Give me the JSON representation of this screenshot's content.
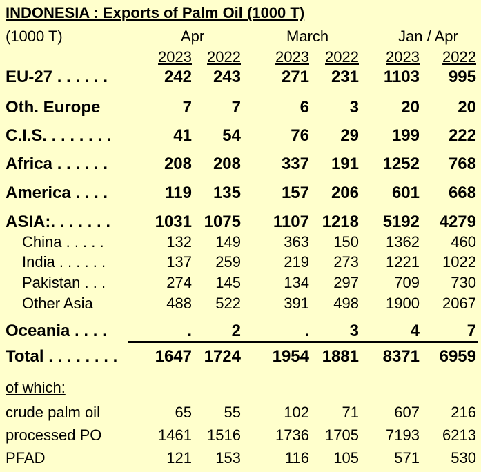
{
  "title": "INDONESIA :  Exports of Palm Oil (1000 T)",
  "unit_label": "(1000 T)",
  "period_groups": [
    "Apr",
    "March",
    "Jan / Apr"
  ],
  "years": [
    "2023",
    "2022",
    "2023",
    "2022",
    "2023",
    "2022"
  ],
  "rows": [
    {
      "label": "EU-27 . . . . . .",
      "values": [
        "242",
        "243",
        "271",
        "231",
        "1103",
        "995"
      ]
    },
    {
      "label": "Oth. Europe",
      "values": [
        "7",
        "7",
        "6",
        "3",
        "20",
        "20"
      ]
    },
    {
      "label": "C.I.S. . . . . . . .",
      "values": [
        "41",
        "54",
        "76",
        "29",
        "199",
        "222"
      ]
    },
    {
      "label": "Africa . . . . . .",
      "values": [
        "208",
        "208",
        "337",
        "191",
        "1252",
        "768"
      ]
    },
    {
      "label": "America . . . .",
      "values": [
        "119",
        "135",
        "157",
        "206",
        "601",
        "668"
      ]
    },
    {
      "label": "ASIA:. . . . . . .",
      "values": [
        "1031",
        "1075",
        "1107",
        "1218",
        "5192",
        "4279"
      ]
    }
  ],
  "asia_rows": [
    {
      "label": "China . . . . .",
      "values": [
        "132",
        "149",
        "363",
        "150",
        "1362",
        "460"
      ]
    },
    {
      "label": "India . . . . . .",
      "values": [
        "137",
        "259",
        "219",
        "273",
        "1221",
        "1022"
      ]
    },
    {
      "label": "Pakistan . . .",
      "values": [
        "274",
        "145",
        "134",
        "297",
        "709",
        "730"
      ]
    },
    {
      "label": "Other Asia",
      "values": [
        "488",
        "522",
        "391",
        "498",
        "1900",
        "2067"
      ]
    }
  ],
  "oceania": {
    "label": "Oceania . . . .",
    "values": [
      ".",
      "2",
      ".",
      "3",
      "4",
      "7"
    ]
  },
  "total": {
    "label": "Total . . . . . . . .",
    "values": [
      "1647",
      "1724",
      "1954",
      "1881",
      "8371",
      "6959"
    ]
  },
  "of_which_label": "of which:",
  "of_which_rows": [
    {
      "label": "crude palm oil",
      "values": [
        "65",
        "55",
        "102",
        "71",
        "607",
        "216"
      ]
    },
    {
      "label": "processed PO",
      "values": [
        "1461",
        "1516",
        "1736",
        "1705",
        "7193",
        "6213"
      ]
    },
    {
      "label": "PFAD",
      "values": [
        "121",
        "153",
        "116",
        "105",
        "571",
        "530"
      ]
    }
  ]
}
